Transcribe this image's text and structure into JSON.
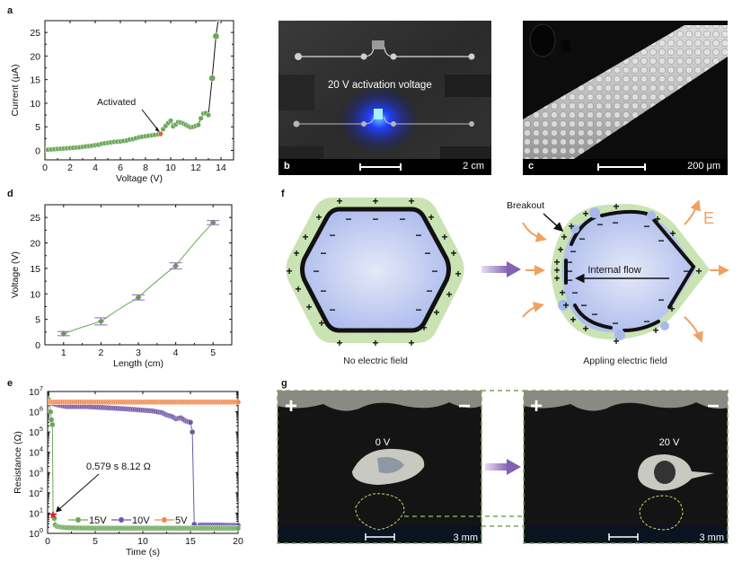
{
  "figure": {
    "panel_labels": [
      "a",
      "b",
      "c",
      "d",
      "e",
      "f",
      "g"
    ]
  },
  "chart_data": [
    {
      "panel": "a",
      "type": "scatter",
      "xlabel": "Voltage (V)",
      "ylabel": "Current (μA)",
      "xlim": [
        0,
        15
      ],
      "ylim": [
        -2,
        27.5
      ],
      "xticks": [
        0,
        2,
        4,
        6,
        8,
        10,
        12,
        14
      ],
      "yticks": [
        0,
        5,
        10,
        15,
        20,
        25
      ],
      "annotation": {
        "text": "Activated",
        "x": 9.2,
        "y": 3.5
      },
      "series": [
        {
          "name": "I-V",
          "color": "#6aa85a",
          "x": [
            0,
            0.25,
            0.5,
            0.75,
            1.0,
            1.25,
            1.5,
            1.75,
            2.0,
            2.25,
            2.5,
            2.75,
            3.0,
            3.25,
            3.5,
            3.75,
            4.0,
            4.25,
            4.5,
            4.75,
            5.0,
            5.25,
            5.5,
            5.75,
            6.0,
            6.25,
            6.5,
            6.75,
            7.0,
            7.25,
            7.5,
            7.75,
            8.0,
            8.25,
            8.5,
            8.75,
            9.0,
            9.2,
            9.4,
            9.6,
            9.8,
            10.0,
            10.2,
            10.4,
            10.6,
            10.8,
            11.0,
            11.2,
            11.4,
            11.6,
            11.8,
            12.0,
            12.2,
            12.4,
            12.6,
            12.8,
            13.0,
            13.3,
            13.6,
            13.8
          ],
          "y": [
            0.1,
            0.15,
            0.2,
            0.25,
            0.3,
            0.35,
            0.4,
            0.45,
            0.5,
            0.55,
            0.6,
            0.65,
            0.75,
            0.85,
            0.9,
            1.0,
            1.1,
            1.2,
            1.4,
            1.5,
            1.6,
            1.7,
            1.8,
            1.85,
            1.9,
            2.0,
            2.1,
            2.3,
            2.4,
            2.6,
            2.8,
            2.9,
            3.0,
            3.1,
            3.2,
            3.3,
            3.4,
            3.5,
            4.5,
            5.2,
            5.8,
            6.3,
            5.1,
            5.5,
            6.0,
            5.9,
            5.7,
            5.4,
            5.1,
            4.9,
            5.0,
            5.2,
            5.4,
            6.8,
            7.8,
            7.9,
            7.5,
            15.3,
            24.2,
            28
          ]
        }
      ]
    },
    {
      "panel": "d",
      "type": "line",
      "xlabel": "Length (cm)",
      "ylabel": "Voltage (V)",
      "xlim": [
        0.5,
        5.5
      ],
      "ylim": [
        0,
        27.5
      ],
      "xticks": [
        1,
        2,
        3,
        4,
        5
      ],
      "yticks": [
        0,
        5,
        10,
        15,
        20,
        25
      ],
      "series": [
        {
          "name": "Activation voltage",
          "color": "#6aa85a",
          "error_color": "#9b7fc4",
          "x": [
            1,
            2,
            3,
            4,
            5
          ],
          "y": [
            2.2,
            4.6,
            9.3,
            15.5,
            24.0
          ],
          "err": [
            0.4,
            0.7,
            0.5,
            0.6,
            0.4
          ]
        }
      ]
    },
    {
      "panel": "e",
      "type": "scatter",
      "xlabel": "Time (s)",
      "ylabel": "Resistance (Ω)",
      "xlim": [
        0,
        20
      ],
      "ylim_log10": [
        0,
        7
      ],
      "xticks": [
        0,
        5,
        10,
        15,
        20
      ],
      "yticks": [
        "10^0",
        "10^1",
        "10^2",
        "10^3",
        "10^4",
        "10^5",
        "10^6",
        "10^7"
      ],
      "ytick_exponents": [
        0,
        1,
        2,
        3,
        4,
        5,
        6,
        7
      ],
      "annotation": {
        "text": "0.579 s  8.12 Ω",
        "x": 0.579,
        "y": 8.12
      },
      "legend": [
        {
          "label": "15V",
          "color": "#6aa85a"
        },
        {
          "label": "10V",
          "color": "#6f55a8"
        },
        {
          "label": "5V",
          "color": "#f0884e"
        }
      ],
      "series": [
        {
          "name": "15V",
          "color": "#6aa85a",
          "x": [
            0.0,
            0.1,
            0.2,
            0.3,
            0.4,
            0.5,
            0.579,
            0.7,
            0.8,
            1.0,
            1.5,
            2,
            3,
            5,
            8,
            10,
            12,
            15,
            18,
            20
          ],
          "y": [
            3000000,
            4000000,
            3000000,
            1000000,
            400000,
            230000,
            8.12,
            5.5,
            2.6,
            2.2,
            2.0,
            1.9,
            1.85,
            1.8,
            1.8,
            1.8,
            1.8,
            1.8,
            1.8,
            1.8
          ]
        },
        {
          "name": "10V",
          "color": "#6f55a8",
          "x": [
            0.0,
            1,
            2,
            3,
            4,
            5,
            6,
            7,
            8,
            9,
            10,
            11,
            12,
            12.5,
            13,
            13.5,
            14,
            14.5,
            15,
            15.2,
            15.4,
            16,
            17,
            18,
            19,
            20
          ],
          "y": [
            3000000,
            2200000,
            1800000,
            1800000,
            1800000,
            1700000,
            1600000,
            1500000,
            1400000,
            1300000,
            1200000,
            1100000,
            900000,
            700000,
            600000,
            450000,
            500000,
            350000,
            300000,
            100000,
            2.8,
            2.6,
            2.6,
            2.6,
            2.5,
            2.5
          ]
        },
        {
          "name": "5V",
          "color": "#f0884e",
          "x": [
            0,
            2,
            4,
            6,
            8,
            10,
            12,
            14,
            16,
            18,
            20
          ],
          "y": [
            3000000,
            3000000,
            3000000,
            3000000,
            3000000,
            3000000,
            3000000,
            3000000,
            3000000,
            3000000,
            3000000
          ]
        }
      ]
    }
  ],
  "panel_b": {
    "caption": "20 V activation voltage",
    "scale_label": "2 cm"
  },
  "panel_c": {
    "scale_label": "200 μm"
  },
  "panel_f": {
    "left_caption": "No electric field",
    "right_caption": "Appling electric field",
    "breakout_label": "Breakout",
    "flow_label": "Internal flow",
    "field_label": "E",
    "colors": {
      "droplet": "#b9c6ee",
      "shell": "#c9e3b3",
      "field_arrow": "#f0a060",
      "transition_arrow": "#8d72b8"
    }
  },
  "panel_g": {
    "left_voltage": "0 V",
    "right_voltage": "20 V",
    "plus_sign": "+",
    "minus_sign": "−",
    "scale_label_left": "3 mm",
    "scale_label_right": "3 mm"
  }
}
